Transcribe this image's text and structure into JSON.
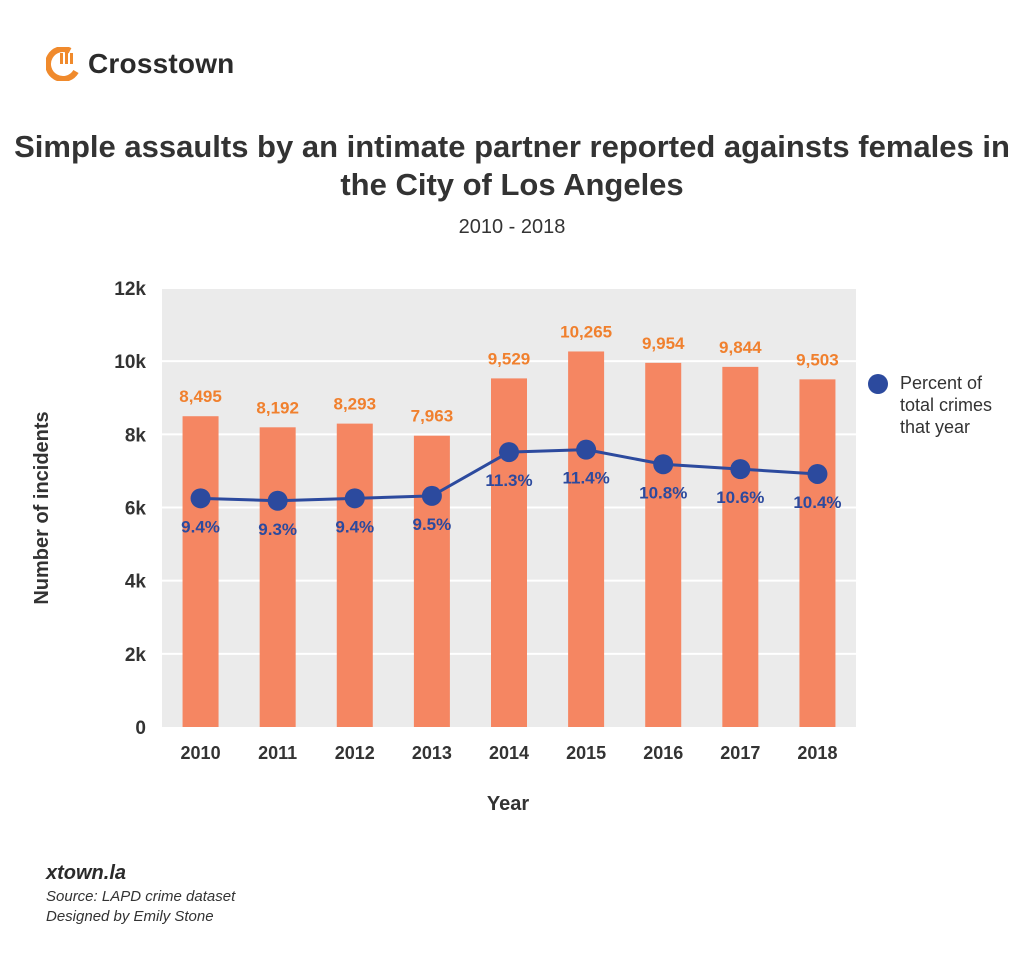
{
  "header": {
    "logo_text": "Crosstown",
    "logo_icon": "crosstown-c-icon"
  },
  "colors": {
    "bar": "#F58662",
    "bar_label": "#F0802E",
    "line": "#2C4A9E",
    "plot_bg": "#EBEBEB",
    "grid": "#FFFFFF",
    "logo": "#F08A2C"
  },
  "chart_data": {
    "type": "bar",
    "title": "Simple assaults by an intimate partner reported againsts females in the City of Los Angeles",
    "subtitle": "2010 - 2018",
    "xlabel": "Year",
    "ylabel": "Number of incidents",
    "ylim": [
      0,
      12000
    ],
    "y_ticks": [
      "0",
      "2k",
      "4k",
      "6k",
      "8k",
      "10k",
      "12k"
    ],
    "grid": true,
    "legend_position": "right",
    "categories": [
      "2010",
      "2011",
      "2012",
      "2013",
      "2014",
      "2015",
      "2016",
      "2017",
      "2018"
    ],
    "series": [
      {
        "type": "bar",
        "values": [
          8495,
          8192,
          8293,
          7963,
          9529,
          10265,
          9954,
          9844,
          9503
        ],
        "labels": [
          "8,495",
          "8,192",
          "8,293",
          "7,963",
          "9,529",
          "10,265",
          "9,954",
          "9,844",
          "9,503"
        ]
      },
      {
        "type": "line",
        "name": "Percent of total crimes that year",
        "values": [
          9.4,
          9.3,
          9.4,
          9.5,
          11.3,
          11.4,
          10.8,
          10.6,
          10.4
        ],
        "labels": [
          "9.4%",
          "9.3%",
          "9.4%",
          "9.5%",
          "11.3%",
          "11.4%",
          "10.8%",
          "10.6%",
          "10.4%"
        ]
      }
    ]
  },
  "footer": {
    "site": "xtown.la",
    "source": "Source: LAPD crime dataset",
    "designer": "Designed by Emily Stone"
  }
}
